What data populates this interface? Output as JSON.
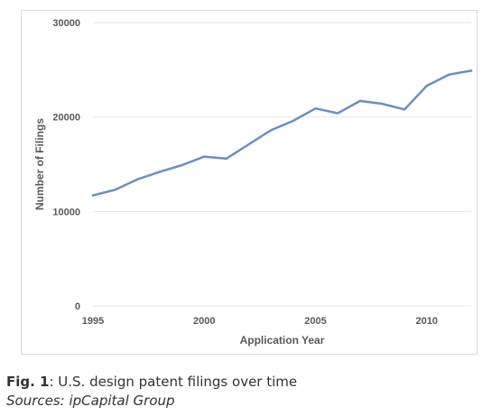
{
  "chart_data": {
    "type": "line",
    "title": "",
    "xlabel": "Application Year",
    "ylabel": "Number of Filings",
    "ylim": [
      0,
      30000
    ],
    "xlim": [
      1995,
      2012
    ],
    "yticks": [
      "0",
      "10000",
      "20000",
      "30000"
    ],
    "xticks": [
      "1995",
      "2000",
      "2005",
      "2010"
    ],
    "grid": true,
    "series": [
      {
        "x": [
          1995,
          1996,
          1997,
          1998,
          1999,
          2000,
          2001,
          2002,
          2003,
          2004,
          2005,
          2006,
          2007,
          2008,
          2009,
          2010,
          2011,
          2012
        ],
        "values": [
          11700,
          12300,
          13400,
          14200,
          14900,
          15800,
          15600,
          17100,
          18600,
          19600,
          20900,
          20400,
          21700,
          21400,
          20800,
          23300,
          24500,
          24900
        ]
      }
    ],
    "line_color": "#6b8fc0",
    "grid_color": "#e6e6e6"
  },
  "caption": {
    "fig_label": "Fig. 1",
    "text": ": U.S. design patent filings over time",
    "source": "Sources: ipCapital Group"
  }
}
